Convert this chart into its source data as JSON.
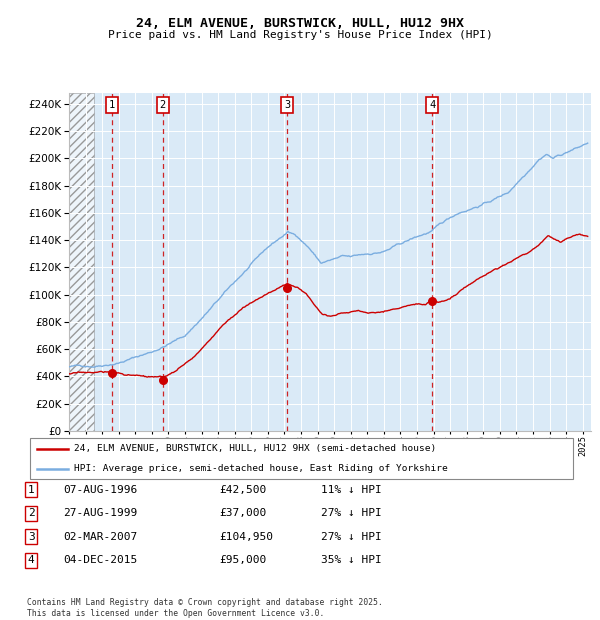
{
  "title": "24, ELM AVENUE, BURSTWICK, HULL, HU12 9HX",
  "subtitle": "Price paid vs. HM Land Registry's House Price Index (HPI)",
  "ytick_values": [
    0,
    20000,
    40000,
    60000,
    80000,
    100000,
    120000,
    140000,
    160000,
    180000,
    200000,
    220000,
    240000
  ],
  "sale_dates_num": [
    1996.6,
    1999.65,
    2007.17,
    2015.92
  ],
  "sale_prices": [
    42500,
    37000,
    104950,
    95000
  ],
  "sale_labels": [
    "1",
    "2",
    "3",
    "4"
  ],
  "hpi_color": "#7aade0",
  "price_color": "#cc0000",
  "bg_color": "#daeaf7",
  "legend_price_label": "24, ELM AVENUE, BURSTWICK, HULL, HU12 9HX (semi-detached house)",
  "legend_hpi_label": "HPI: Average price, semi-detached house, East Riding of Yorkshire",
  "table_rows": [
    [
      "1",
      "07-AUG-1996",
      "£42,500",
      "11% ↓ HPI"
    ],
    [
      "2",
      "27-AUG-1999",
      "£37,000",
      "27% ↓ HPI"
    ],
    [
      "3",
      "02-MAR-2007",
      "£104,950",
      "27% ↓ HPI"
    ],
    [
      "4",
      "04-DEC-2015",
      "£95,000",
      "35% ↓ HPI"
    ]
  ],
  "footer": "Contains HM Land Registry data © Crown copyright and database right 2025.\nThis data is licensed under the Open Government Licence v3.0.",
  "xmin": 1994.0,
  "xmax": 2025.5,
  "ymin": 0,
  "ymax": 248000,
  "hatch_xmax": 1995.5
}
